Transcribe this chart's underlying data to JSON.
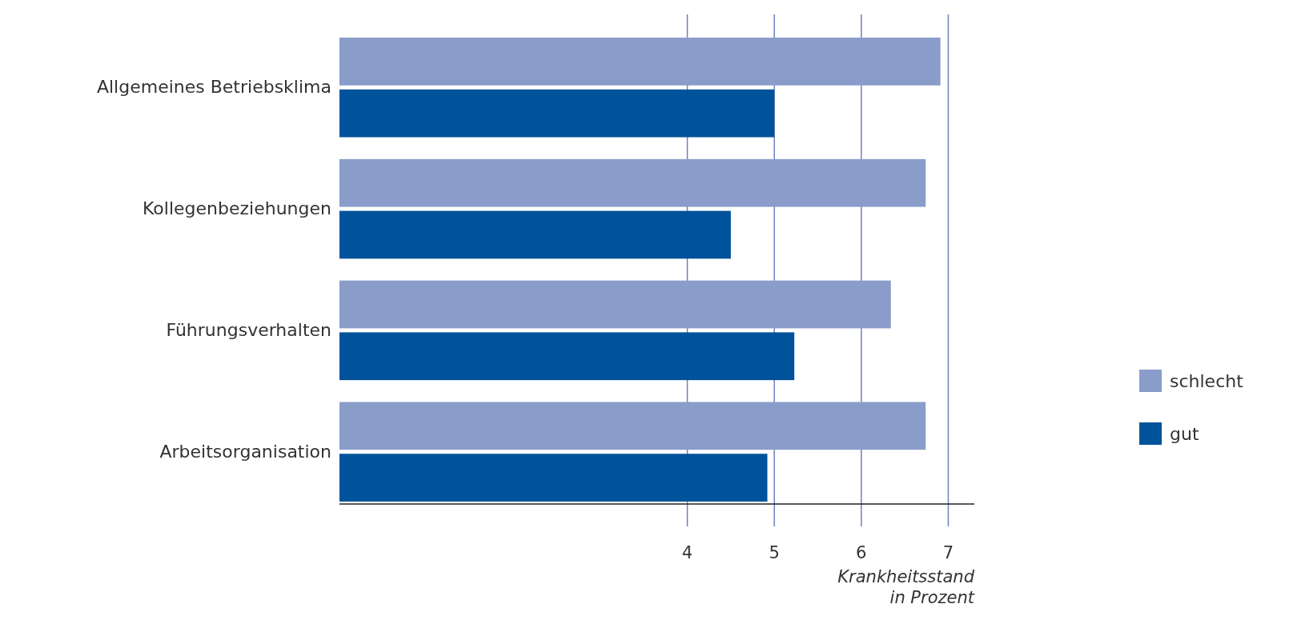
{
  "chart_data": {
    "type": "bar",
    "orientation": "horizontal",
    "categories": [
      "Allgemeines Betriebsklima",
      "Kollegenbeziehungen",
      "Führungsverhalten",
      "Arbeitsorganisation"
    ],
    "series": [
      {
        "name": "schlecht",
        "color": "#8a9cc9",
        "values": [
          6.91,
          6.74,
          6.34,
          6.74
        ]
      },
      {
        "name": "gut",
        "color": "#00529b",
        "values": [
          5.0,
          4.5,
          5.23,
          4.92
        ]
      }
    ],
    "xlim": [
      0,
      7.3
    ],
    "xticks": [
      4,
      5,
      6,
      7
    ],
    "xlabel": "Krankheitsstand in Prozent",
    "grid": "x",
    "legend": "right"
  }
}
